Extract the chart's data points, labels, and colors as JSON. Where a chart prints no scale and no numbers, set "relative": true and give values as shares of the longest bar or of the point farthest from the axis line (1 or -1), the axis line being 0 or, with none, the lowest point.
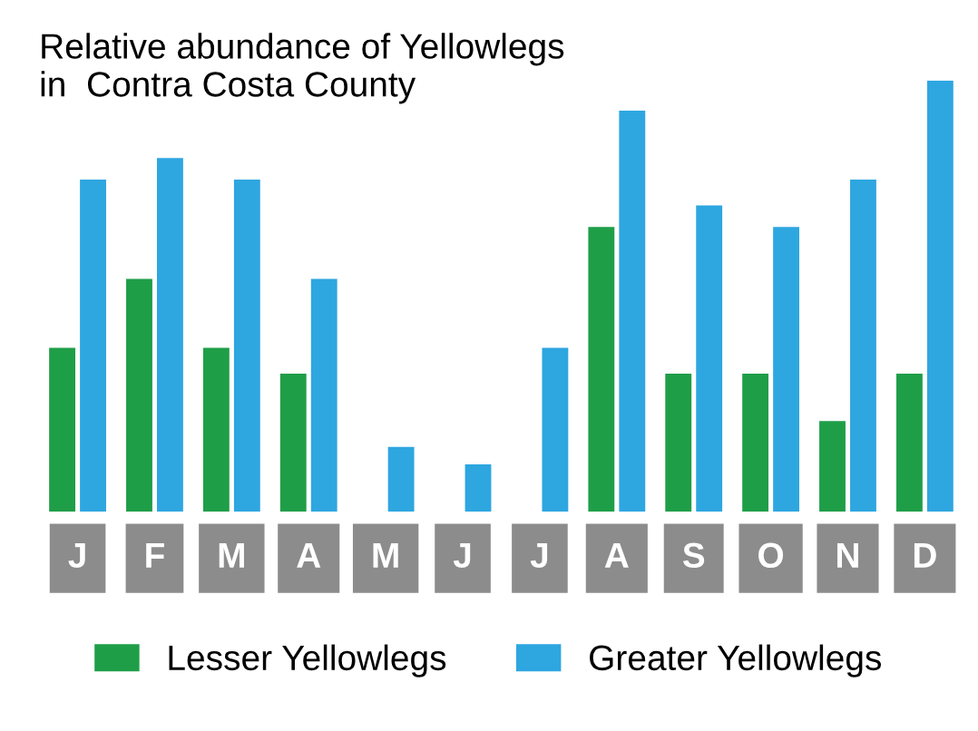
{
  "chart_data": {
    "type": "bar",
    "title": "Relative abundance of Yellowlegs\nin  Contra Costa County",
    "relative": true,
    "categories": [
      "J",
      "F",
      "M",
      "A",
      "M",
      "J",
      "J",
      "A",
      "S",
      "O",
      "N",
      "D"
    ],
    "series": [
      {
        "name": "Lesser Yellowlegs",
        "color": "#1f9e48",
        "values": [
          0.38,
          0.54,
          0.38,
          0.32,
          0,
          0,
          0,
          0.66,
          0.32,
          0.32,
          0.21,
          0.32
        ]
      },
      {
        "name": "Greater Yellowlegs",
        "color": "#2ea6e0",
        "values": [
          0.77,
          0.82,
          0.77,
          0.54,
          0.15,
          0.11,
          0.38,
          0.93,
          0.71,
          0.66,
          0.77,
          1.0
        ]
      }
    ],
    "legend": "bottom",
    "grid": false
  }
}
